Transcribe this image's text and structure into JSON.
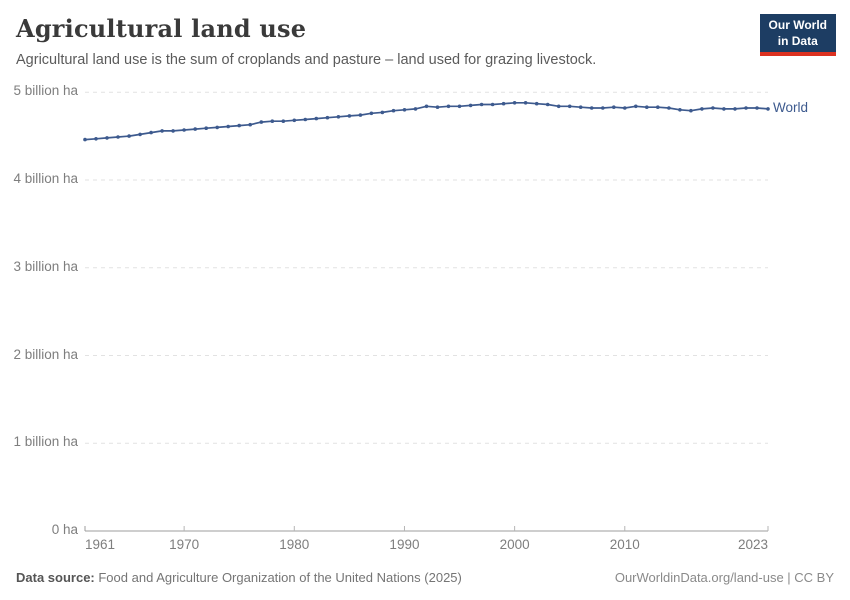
{
  "header": {
    "title": "Agricultural land use",
    "subtitle": "Agricultural land use is the sum of croplands and pasture – land used for grazing livestock."
  },
  "logo": {
    "line1": "Our World",
    "line2": "in Data",
    "bg_color": "#1d3d63",
    "accent_color": "#dc3120"
  },
  "chart_data": {
    "type": "line",
    "title": "Agricultural land use",
    "xlabel": "",
    "ylabel": "",
    "unit": "billion ha",
    "grid": "horizontal-dashed",
    "legend_position": "end-of-line",
    "xlim": [
      1961,
      2023
    ],
    "ylim": [
      0,
      5
    ],
    "x": [
      1961,
      1962,
      1963,
      1964,
      1965,
      1966,
      1967,
      1968,
      1969,
      1970,
      1971,
      1972,
      1973,
      1974,
      1975,
      1976,
      1977,
      1978,
      1979,
      1980,
      1981,
      1982,
      1983,
      1984,
      1985,
      1986,
      1987,
      1988,
      1989,
      1990,
      1991,
      1992,
      1993,
      1994,
      1995,
      1996,
      1997,
      1998,
      1999,
      2000,
      2001,
      2002,
      2003,
      2004,
      2005,
      2006,
      2007,
      2008,
      2009,
      2010,
      2011,
      2012,
      2013,
      2014,
      2015,
      2016,
      2017,
      2018,
      2019,
      2020,
      2021,
      2022,
      2023
    ],
    "series": [
      {
        "name": "World",
        "color": "#3d5a8e",
        "values": [
          4.46,
          4.47,
          4.48,
          4.49,
          4.5,
          4.52,
          4.54,
          4.56,
          4.56,
          4.57,
          4.58,
          4.59,
          4.6,
          4.61,
          4.62,
          4.63,
          4.66,
          4.67,
          4.67,
          4.68,
          4.69,
          4.7,
          4.71,
          4.72,
          4.73,
          4.74,
          4.76,
          4.77,
          4.79,
          4.8,
          4.81,
          4.84,
          4.83,
          4.84,
          4.84,
          4.85,
          4.86,
          4.86,
          4.87,
          4.88,
          4.88,
          4.87,
          4.86,
          4.84,
          4.84,
          4.83,
          4.82,
          4.82,
          4.83,
          4.82,
          4.84,
          4.83,
          4.83,
          4.82,
          4.8,
          4.79,
          4.81,
          4.82,
          4.81,
          4.81,
          4.82,
          4.82,
          4.81
        ]
      }
    ],
    "y_ticks": [
      {
        "value": 5,
        "label": "5 billion ha"
      },
      {
        "value": 4,
        "label": "4 billion ha"
      },
      {
        "value": 3,
        "label": "3 billion ha"
      },
      {
        "value": 2,
        "label": "2 billion ha"
      },
      {
        "value": 1,
        "label": "1 billion ha"
      },
      {
        "value": 0,
        "label": "0 ha"
      }
    ],
    "x_ticks": [
      {
        "value": 1961,
        "label": "1961"
      },
      {
        "value": 1970,
        "label": "1970"
      },
      {
        "value": 1980,
        "label": "1980"
      },
      {
        "value": 1990,
        "label": "1990"
      },
      {
        "value": 2000,
        "label": "2000"
      },
      {
        "value": 2010,
        "label": "2010"
      },
      {
        "value": 2023,
        "label": "2023"
      }
    ]
  },
  "footer": {
    "source_label": "Data source:",
    "source_text": " Food and Agriculture Organization of the United Nations (2025)",
    "link_text": "OurWorldinData.org/land-use | CC BY"
  }
}
